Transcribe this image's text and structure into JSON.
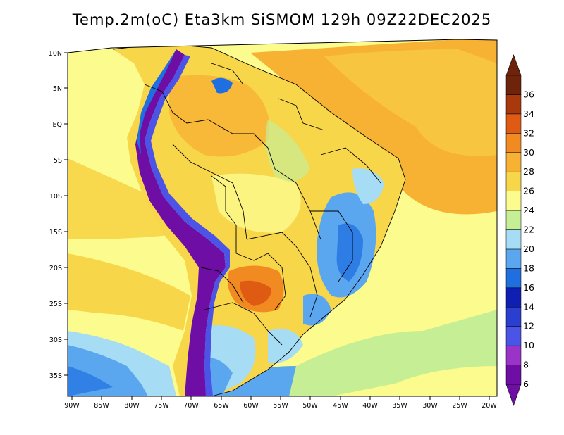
{
  "title": "Temp.2m(oC) Eta3km SiSMOM 129h 09Z22DEC2025",
  "lat_ticks": [
    "10N",
    "5N",
    "EQ",
    "5S",
    "10S",
    "15S",
    "20S",
    "25S",
    "30S",
    "35S"
  ],
  "lon_ticks": [
    "90W",
    "85W",
    "80W",
    "75W",
    "70W",
    "65W",
    "60W",
    "55W",
    "50W",
    "45W",
    "40W",
    "35W",
    "30W",
    "25W",
    "20W"
  ],
  "colorbar": {
    "labels": [
      "6",
      "8",
      "10",
      "12",
      "14",
      "16",
      "18",
      "20",
      "22",
      "24",
      "26",
      "28",
      "30",
      "32",
      "34",
      "36"
    ],
    "colors": [
      "#6e0ea5",
      "#9a34c9",
      "#4b54e6",
      "#2a3fd0",
      "#0f1fb3",
      "#1f6fe0",
      "#5aa7f0",
      "#a6dcf4",
      "#c6ee94",
      "#fcfb8e",
      "#f8d64a",
      "#f7b234",
      "#f28a22",
      "#df5b14",
      "#a9390d",
      "#6e240b"
    ]
  }
}
